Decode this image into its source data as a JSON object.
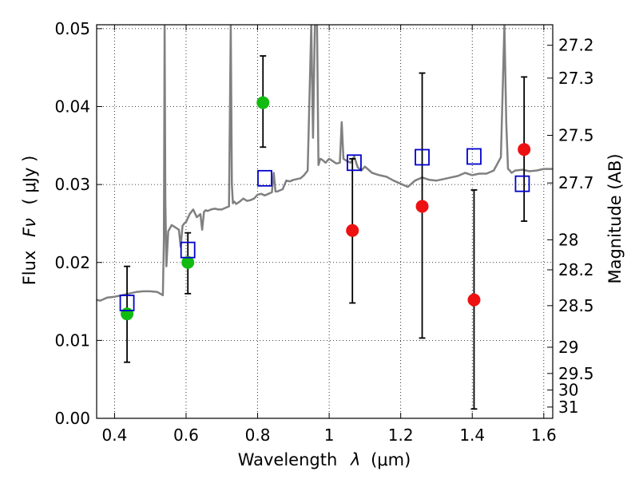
{
  "chart_data": {
    "type": "scatter",
    "xlabel": "Wavelength",
    "xlabel_symbol": "λ",
    "xlabel_unit": "(μm)",
    "ylabel": "Flux",
    "ylabel_symbol": "Fν",
    "ylabel_unit": "( μJy )",
    "y2label": "Magnitude (AB)",
    "xlim": [
      0.35,
      1.625
    ],
    "ylim": [
      0.0,
      0.0505
    ],
    "grid": true,
    "x_ticks": [
      0.4,
      0.6,
      0.8,
      1.0,
      1.2,
      1.4,
      1.6
    ],
    "x_tick_labels": [
      "0.4",
      "0.6",
      "0.8",
      "1",
      "1.2",
      "1.4",
      "1.6"
    ],
    "y_ticks": [
      0.0,
      0.01,
      0.02,
      0.03,
      0.04,
      0.05
    ],
    "y_tick_labels": [
      "0.00",
      "0.01",
      "0.02",
      "0.03",
      "0.04",
      "0.05"
    ],
    "y2_ticks": [
      {
        "mag": 27.2,
        "label": "27.2"
      },
      {
        "mag": 27.3,
        "label": "27.3"
      },
      {
        "mag": 27.5,
        "label": "27.5"
      },
      {
        "mag": 27.7,
        "label": "27.7"
      },
      {
        "mag": 28.0,
        "label": "28"
      },
      {
        "mag": 28.2,
        "label": "28.2"
      },
      {
        "mag": 28.5,
        "label": "28.5"
      },
      {
        "mag": 29.0,
        "label": "29"
      },
      {
        "mag": 29.5,
        "label": "29.5"
      },
      {
        "mag": 30.0,
        "label": "30"
      },
      {
        "mag": 31.0,
        "label": "31"
      }
    ],
    "colors": {
      "template": "#808080",
      "green_points": "#11bb11",
      "red_points": "#ee1111",
      "model_points": "#0000cc",
      "errorbars": "#000000"
    },
    "series": [
      {
        "kind": "line",
        "x": [
          0.35,
          0.36,
          0.38,
          0.4,
          0.42,
          0.44,
          0.46,
          0.48,
          0.5,
          0.52,
          0.535,
          0.538,
          0.54,
          0.542,
          0.545,
          0.55,
          0.56,
          0.57,
          0.58,
          0.585,
          0.59,
          0.595,
          0.6,
          0.61,
          0.62,
          0.63,
          0.64,
          0.645,
          0.65,
          0.655,
          0.66,
          0.67,
          0.68,
          0.69,
          0.7,
          0.71,
          0.72,
          0.725,
          0.728,
          0.731,
          0.735,
          0.74,
          0.75,
          0.76,
          0.77,
          0.78,
          0.79,
          0.8,
          0.81,
          0.82,
          0.83,
          0.84,
          0.845,
          0.85,
          0.855,
          0.86,
          0.87,
          0.88,
          0.89,
          0.9,
          0.91,
          0.92,
          0.93,
          0.94,
          0.95,
          0.955,
          0.96,
          0.963,
          0.966,
          0.97,
          0.975,
          0.98,
          0.99,
          1.0,
          1.01,
          1.02,
          1.03,
          1.035,
          1.04,
          1.05,
          1.06,
          1.07,
          1.08,
          1.09,
          1.1,
          1.12,
          1.14,
          1.16,
          1.18,
          1.2,
          1.22,
          1.24,
          1.26,
          1.28,
          1.3,
          1.32,
          1.34,
          1.36,
          1.38,
          1.4,
          1.42,
          1.44,
          1.46,
          1.48,
          1.49,
          1.495,
          1.5,
          1.505,
          1.51,
          1.52,
          1.54,
          1.56,
          1.58,
          1.6,
          1.625
        ],
        "y": [
          0.0152,
          0.0151,
          0.0155,
          0.0156,
          0.0158,
          0.016,
          0.0162,
          0.0163,
          0.0163,
          0.0162,
          0.0158,
          0.023,
          0.0505,
          0.028,
          0.0195,
          0.024,
          0.0248,
          0.0245,
          0.0242,
          0.022,
          0.0247,
          0.025,
          0.0252,
          0.0262,
          0.0268,
          0.0258,
          0.0262,
          0.0242,
          0.0265,
          0.0267,
          0.0266,
          0.0268,
          0.0269,
          0.0268,
          0.0268,
          0.027,
          0.0272,
          0.0505,
          0.03,
          0.0276,
          0.0278,
          0.0275,
          0.0278,
          0.0282,
          0.0279,
          0.028,
          0.0282,
          0.0287,
          0.0288,
          0.0286,
          0.0288,
          0.029,
          0.0315,
          0.0291,
          0.0291,
          0.0292,
          0.0294,
          0.0305,
          0.0304,
          0.0306,
          0.0307,
          0.0308,
          0.0312,
          0.0318,
          0.0505,
          0.036,
          0.0505,
          0.0505,
          0.0505,
          0.0325,
          0.0333,
          0.0332,
          0.0328,
          0.0333,
          0.033,
          0.0327,
          0.0328,
          0.038,
          0.0333,
          0.033,
          0.0328,
          0.0336,
          0.0322,
          0.0318,
          0.0323,
          0.0315,
          0.0312,
          0.031,
          0.0305,
          0.0301,
          0.0297,
          0.0305,
          0.0309,
          0.0306,
          0.0305,
          0.0307,
          0.0309,
          0.0311,
          0.0315,
          0.0312,
          0.0314,
          0.0314,
          0.0318,
          0.0335,
          0.0505,
          0.038,
          0.032,
          0.0318,
          0.0315,
          0.0318,
          0.0319,
          0.0317,
          0.0318,
          0.032,
          0.032
        ]
      },
      {
        "kind": "scatter",
        "marker": "circle",
        "color": "green",
        "x": [
          0.435,
          0.605,
          0.815
        ],
        "y": [
          0.0134,
          0.02,
          0.0405
        ],
        "yerr_low": [
          0.0072,
          0.016,
          0.0348
        ],
        "yerr_high": [
          0.0195,
          0.0238,
          0.0465
        ]
      },
      {
        "kind": "scatter",
        "marker": "circle",
        "color": "red",
        "x": [
          1.065,
          1.26,
          1.405,
          1.545
        ],
        "y": [
          0.0241,
          0.0272,
          0.0152,
          0.0345
        ],
        "yerr_low": [
          0.0148,
          0.0103,
          0.0012,
          0.0253
        ],
        "yerr_high": [
          0.0333,
          0.0443,
          0.0293,
          0.0438
        ]
      },
      {
        "kind": "scatter",
        "marker": "open-square",
        "color": "blue",
        "x": [
          0.435,
          0.605,
          0.82,
          1.07,
          1.26,
          1.405,
          1.54
        ],
        "y": [
          0.0148,
          0.0216,
          0.0308,
          0.0328,
          0.0335,
          0.0336,
          0.0301
        ]
      }
    ]
  }
}
